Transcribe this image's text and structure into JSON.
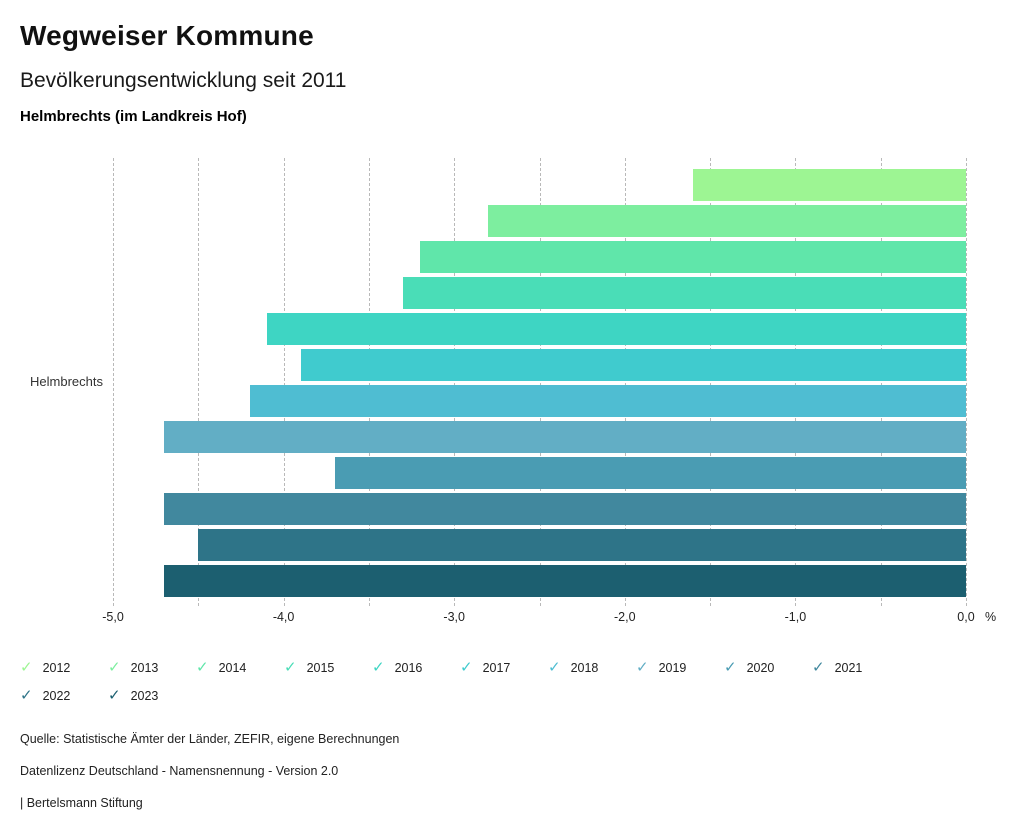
{
  "header": {
    "title": "Wegweiser Kommune",
    "subtitle": "Bevölkerungsentwicklung seit 2011",
    "location": "Helmbrechts (im Landkreis Hof)"
  },
  "chart_data": {
    "type": "bar",
    "orientation": "horizontal",
    "row_label": "Helmbrechts",
    "categories": [
      "2012",
      "2013",
      "2014",
      "2015",
      "2016",
      "2017",
      "2018",
      "2019",
      "2020",
      "2021",
      "2022",
      "2023"
    ],
    "values": [
      -1.6,
      -2.8,
      -3.2,
      -3.3,
      -4.1,
      -3.9,
      -4.2,
      -4.7,
      -3.7,
      -4.7,
      -4.5,
      -4.7
    ],
    "colors": [
      "#9df593",
      "#7dee9f",
      "#60e6aa",
      "#4addb7",
      "#3ed5c3",
      "#40cbce",
      "#4fbdd2",
      "#62aec5",
      "#4a9cb3",
      "#41889e",
      "#2e7488",
      "#1c5f70"
    ],
    "xlim": [
      -5.0,
      0.0
    ],
    "x_tick_labels": [
      "-5,0",
      "-4,0",
      "-3,0",
      "-2,0",
      "-1,0",
      "0,0"
    ],
    "x_unit": "%",
    "gridline_step": 0.5,
    "grid_style": "dashed",
    "legend_position": "bottom"
  },
  "legend": {
    "check_glyph": "✓",
    "row1_years": [
      "2012",
      "2013",
      "2014",
      "2015",
      "2016",
      "2017",
      "2018",
      "2019",
      "2020",
      "2021"
    ],
    "row2_years": [
      "2022",
      "2023"
    ]
  },
  "footer": {
    "source": "Quelle: Statistische Ämter der Länder, ZEFIR, eigene Berechnungen",
    "license": "Datenlizenz Deutschland - Namensnennung - Version 2.0",
    "attribution": "| Bertelsmann Stiftung"
  }
}
